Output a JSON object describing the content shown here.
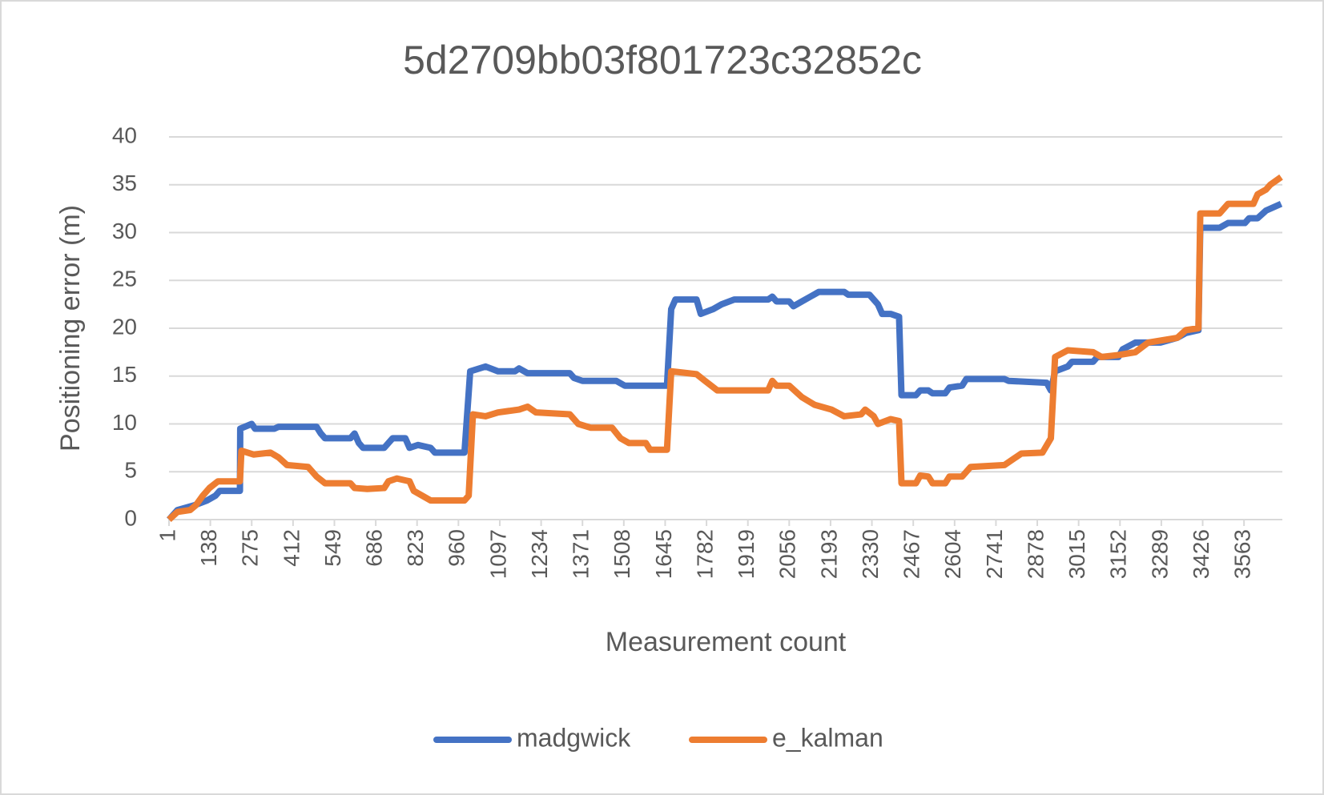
{
  "chart_data": {
    "type": "line",
    "title": "5d2709bb03f801723c32852c",
    "x_label": "Measurement count",
    "y_label": "Positioning error (m)",
    "xlim": [
      1,
      3690
    ],
    "xticks": [
      1,
      138,
      275,
      412,
      549,
      686,
      823,
      960,
      1097,
      1234,
      1371,
      1508,
      1645,
      1782,
      1919,
      2056,
      2193,
      2330,
      2467,
      2604,
      2741,
      2878,
      3015,
      3152,
      3289,
      3426,
      3563
    ],
    "ylim": [
      0,
      40
    ],
    "yticks": [
      0,
      5,
      10,
      15,
      20,
      25,
      30,
      35,
      40
    ],
    "grid": true,
    "legend": "bottom",
    "series": [
      {
        "name": "madgwick",
        "color": "#4472c4",
        "x": [
          1,
          29,
          85,
          127,
          155,
          169,
          236,
          237,
          275,
          286,
          350,
          364,
          490,
          504,
          518,
          602,
          616,
          630,
          644,
          714,
          728,
          742,
          784,
          798,
          826,
          868,
          882,
          980,
          999,
          1050,
          1091,
          1147,
          1161,
          1189,
          1329,
          1343,
          1371,
          1483,
          1511,
          1651,
          1665,
          1679,
          1749,
          1763,
          1804,
          1832,
          1874,
          1986,
          2000,
          2014,
          2056,
          2070,
          2098,
          2126,
          2154,
          2238,
          2252,
          2322,
          2350,
          2364,
          2392,
          2420,
          2428,
          2476,
          2490,
          2517,
          2531,
          2573,
          2587,
          2629,
          2643,
          2769,
          2783,
          2909,
          2923,
          2937,
          2979,
          2993,
          3063,
          3077,
          3147,
          3161,
          3203,
          3286,
          3342,
          3370,
          3412,
          3418,
          3482,
          3510,
          3566,
          3580,
          3608,
          3636,
          3686
        ],
        "values": [
          0,
          1,
          1.5,
          2,
          2.5,
          3,
          3,
          9.5,
          10,
          9.5,
          9.5,
          9.7,
          9.7,
          9,
          8.5,
          8.5,
          9,
          8,
          7.5,
          7.5,
          8,
          8.5,
          8.5,
          7.5,
          7.8,
          7.5,
          7,
          7,
          15.5,
          16,
          15.5,
          15.5,
          15.8,
          15.3,
          15.3,
          14.8,
          14.5,
          14.5,
          14,
          14,
          22,
          23,
          23,
          21.5,
          22,
          22.5,
          23,
          23,
          23.3,
          22.8,
          22.8,
          22.3,
          22.8,
          23.3,
          23.8,
          23.8,
          23.5,
          23.5,
          22.5,
          21.5,
          21.5,
          21.2,
          13,
          13,
          13.5,
          13.5,
          13.2,
          13.2,
          13.8,
          14,
          14.7,
          14.7,
          14.5,
          14.3,
          13.5,
          15.5,
          16,
          16.5,
          16.5,
          17,
          17,
          17.8,
          18.5,
          18.5,
          19,
          19.5,
          19.8,
          30.5,
          30.5,
          31,
          31,
          31.5,
          31.5,
          32.3,
          33
        ]
      },
      {
        "name": "e_kalman",
        "color": "#ed7d31",
        "x": [
          1,
          29,
          71,
          90,
          113,
          135,
          163,
          236,
          241,
          281,
          337,
          364,
          392,
          462,
          490,
          518,
          602,
          616,
          658,
          714,
          728,
          756,
          798,
          812,
          840,
          868,
          980,
          994,
          1008,
          1050,
          1091,
          1161,
          1189,
          1217,
          1329,
          1357,
          1399,
          1469,
          1497,
          1525,
          1581,
          1595,
          1651,
          1665,
          1749,
          1777,
          1818,
          1986,
          2000,
          2014,
          2056,
          2098,
          2140,
          2196,
          2238,
          2294,
          2308,
          2336,
          2350,
          2392,
          2420,
          2428,
          2476,
          2490,
          2517,
          2531,
          2573,
          2587,
          2629,
          2657,
          2769,
          2797,
          2825,
          2895,
          2923,
          2937,
          2979,
          3063,
          3091,
          3147,
          3203,
          3245,
          3342,
          3370,
          3412,
          3418,
          3482,
          3510,
          3594,
          3608,
          3636,
          3650,
          3686
        ],
        "values": [
          0,
          0.8,
          1,
          1.5,
          2.5,
          3.3,
          4,
          4,
          7.2,
          6.8,
          7,
          6.5,
          5.7,
          5.5,
          4.5,
          3.8,
          3.8,
          3.3,
          3.2,
          3.3,
          4,
          4.3,
          4,
          3,
          2.5,
          2,
          2,
          2.5,
          11,
          10.8,
          11.2,
          11.5,
          11.8,
          11.2,
          11,
          10,
          9.6,
          9.6,
          8.5,
          8,
          8,
          7.3,
          7.3,
          15.5,
          15.2,
          14.5,
          13.5,
          13.5,
          14.5,
          14,
          14,
          12.8,
          12,
          11.5,
          10.8,
          11,
          11.5,
          10.8,
          10,
          10.5,
          10.3,
          3.8,
          3.8,
          4.6,
          4.5,
          3.8,
          3.8,
          4.5,
          4.5,
          5.5,
          5.7,
          6.3,
          6.9,
          7,
          8.5,
          17,
          17.7,
          17.5,
          17,
          17.2,
          17.5,
          18.5,
          19,
          19.8,
          20,
          32,
          32,
          33,
          33,
          34,
          34.5,
          35,
          35.8
        ]
      }
    ]
  }
}
